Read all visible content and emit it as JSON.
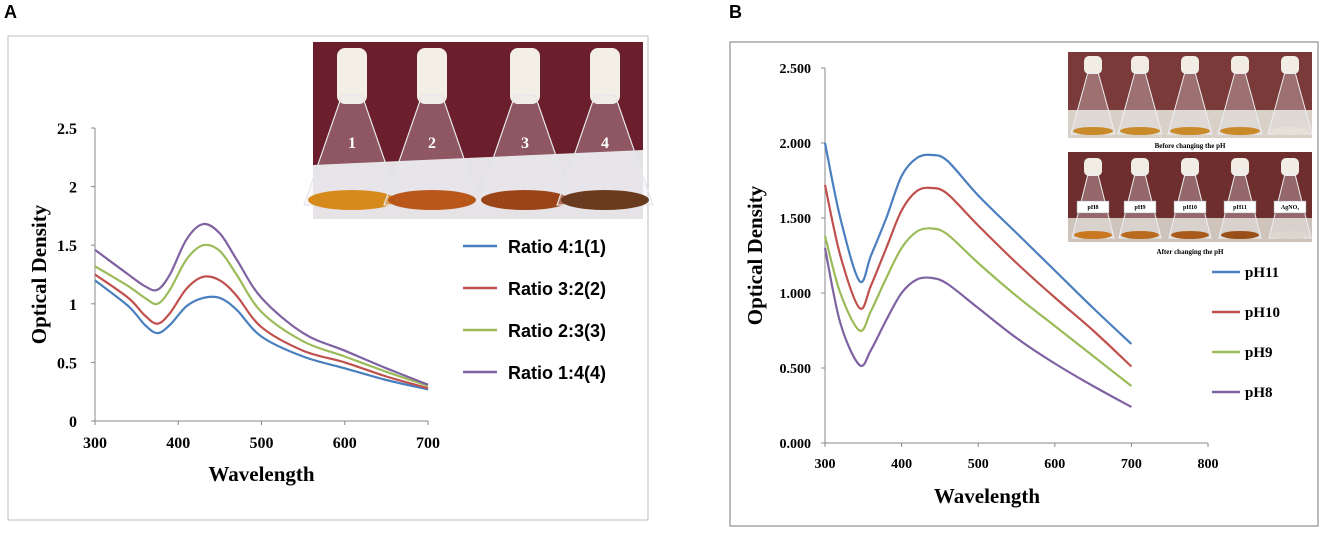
{
  "chart_data": [
    {
      "panel": "A",
      "type": "line",
      "xlabel": "Wavelength",
      "ylabel": "Optical Density",
      "xlim": [
        300,
        700
      ],
      "ylim": [
        0,
        2.5
      ],
      "xticks": [
        "300",
        "400",
        "500",
        "600",
        "700"
      ],
      "yticks": [
        "0",
        "0.5",
        "1",
        "1.5",
        "2",
        "2.5"
      ],
      "legend_position": "right",
      "series": [
        {
          "name": "Ratio 4:1(1)",
          "color": "#4a7fbf",
          "x": [
            300,
            340,
            360,
            375,
            390,
            410,
            430,
            450,
            470,
            500,
            550,
            600,
            650,
            700
          ],
          "y": [
            1.2,
            0.98,
            0.82,
            0.75,
            0.82,
            0.98,
            1.05,
            1.05,
            0.95,
            0.72,
            0.55,
            0.45,
            0.35,
            0.27
          ]
        },
        {
          "name": "Ratio 3:2(2)",
          "color": "#c0504d",
          "x": [
            300,
            340,
            360,
            375,
            390,
            410,
            430,
            450,
            470,
            500,
            550,
            600,
            650,
            700
          ],
          "y": [
            1.25,
            1.05,
            0.9,
            0.83,
            0.92,
            1.13,
            1.23,
            1.2,
            1.07,
            0.8,
            0.6,
            0.5,
            0.38,
            0.28
          ]
        },
        {
          "name": "Ratio 2:3(3)",
          "color": "#9bbb59",
          "x": [
            300,
            340,
            360,
            375,
            390,
            410,
            430,
            450,
            470,
            500,
            550,
            600,
            650,
            700
          ],
          "y": [
            1.32,
            1.15,
            1.05,
            1.0,
            1.12,
            1.38,
            1.5,
            1.45,
            1.25,
            0.93,
            0.68,
            0.55,
            0.42,
            0.3
          ]
        },
        {
          "name": "Ratio 1:4(4)",
          "color": "#7e62a1",
          "x": [
            300,
            340,
            360,
            375,
            390,
            410,
            430,
            450,
            470,
            500,
            550,
            600,
            650,
            700
          ],
          "y": [
            1.46,
            1.25,
            1.15,
            1.12,
            1.25,
            1.55,
            1.68,
            1.6,
            1.38,
            1.05,
            0.75,
            0.6,
            0.45,
            0.31
          ]
        }
      ],
      "inset": {
        "flask_labels": [
          "1",
          "2",
          "3",
          "4"
        ]
      }
    },
    {
      "panel": "B",
      "type": "line",
      "xlabel": "Wavelength",
      "ylabel": "Optical Density",
      "xlim": [
        300,
        800
      ],
      "ylim": [
        0,
        2.5
      ],
      "xticks": [
        "300",
        "400",
        "500",
        "600",
        "700",
        "800"
      ],
      "yticks": [
        "0.000",
        "0.500",
        "1.000",
        "1.500",
        "2.000",
        "2.500"
      ],
      "legend_position": "right",
      "series": [
        {
          "name": "pH11",
          "color": "#4a7fbf",
          "x": [
            300,
            320,
            345,
            360,
            380,
            400,
            420,
            440,
            460,
            500,
            550,
            600,
            650,
            700
          ],
          "y": [
            2.0,
            1.5,
            1.08,
            1.25,
            1.5,
            1.78,
            1.9,
            1.92,
            1.88,
            1.65,
            1.4,
            1.15,
            0.9,
            0.66
          ]
        },
        {
          "name": "pH10",
          "color": "#c0504d",
          "x": [
            300,
            320,
            345,
            360,
            380,
            400,
            420,
            440,
            460,
            500,
            550,
            600,
            650,
            700
          ],
          "y": [
            1.72,
            1.25,
            0.9,
            1.05,
            1.3,
            1.55,
            1.68,
            1.7,
            1.66,
            1.45,
            1.2,
            0.97,
            0.75,
            0.51
          ]
        },
        {
          "name": "pH9",
          "color": "#9bbb59",
          "x": [
            300,
            320,
            345,
            360,
            380,
            400,
            420,
            440,
            460,
            500,
            550,
            600,
            650,
            700
          ],
          "y": [
            1.38,
            1.0,
            0.75,
            0.88,
            1.1,
            1.3,
            1.41,
            1.43,
            1.39,
            1.2,
            0.98,
            0.78,
            0.58,
            0.38
          ]
        },
        {
          "name": "pH8",
          "color": "#7e62a1",
          "x": [
            300,
            320,
            345,
            360,
            380,
            400,
            420,
            440,
            460,
            500,
            550,
            600,
            650,
            700
          ],
          "y": [
            1.3,
            0.8,
            0.52,
            0.62,
            0.82,
            1.0,
            1.09,
            1.1,
            1.06,
            0.9,
            0.7,
            0.53,
            0.38,
            0.24
          ]
        }
      ],
      "inset": {
        "top_caption": "Before changing the pH",
        "bottom_caption": "After changing the pH",
        "flask_labels": [
          "pH8",
          "pH9",
          "pH10",
          "pH11",
          "AgNO₃"
        ]
      }
    }
  ]
}
